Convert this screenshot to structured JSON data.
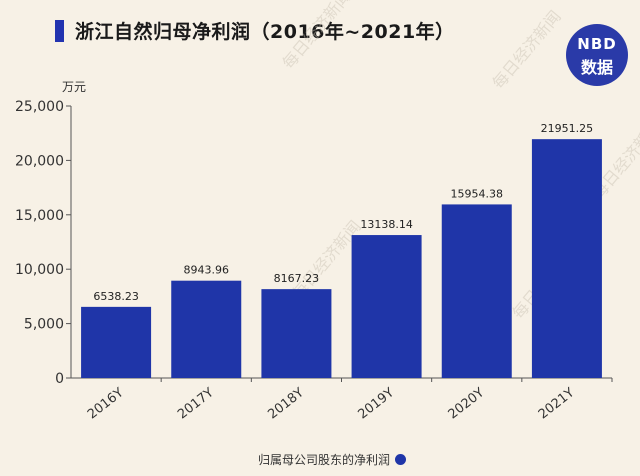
{
  "title": "浙江自然归母净利润（2016年~2021年）",
  "logo": {
    "line1": "NBD",
    "line2": "数据"
  },
  "watermark": "每日经济新闻",
  "colors": {
    "bar": "#1f35a8",
    "accent": "#2233b0",
    "background": "#f7f1e6"
  },
  "chart_data": {
    "type": "bar",
    "categories": [
      "2016Y",
      "2017Y",
      "2018Y",
      "2019Y",
      "2020Y",
      "2021Y"
    ],
    "series": [
      {
        "name": "归属母公司股东的净利润",
        "values": [
          6538.23,
          8943.96,
          8167.23,
          13138.14,
          15954.38,
          21951.25
        ]
      }
    ],
    "data_labels": [
      "6538.23",
      "8943.96",
      "8167.23",
      "13138.14",
      "15954.38",
      "21951.25"
    ],
    "ylabel": "万元",
    "ylim": [
      0,
      25000
    ],
    "yticks": [
      0,
      5000,
      10000,
      15000,
      20000,
      25000
    ],
    "ytick_labels": [
      "0",
      "5,000",
      "10,000",
      "15,000",
      "20,000",
      "25,000"
    ],
    "grid": false,
    "legend_position": "bottom"
  }
}
